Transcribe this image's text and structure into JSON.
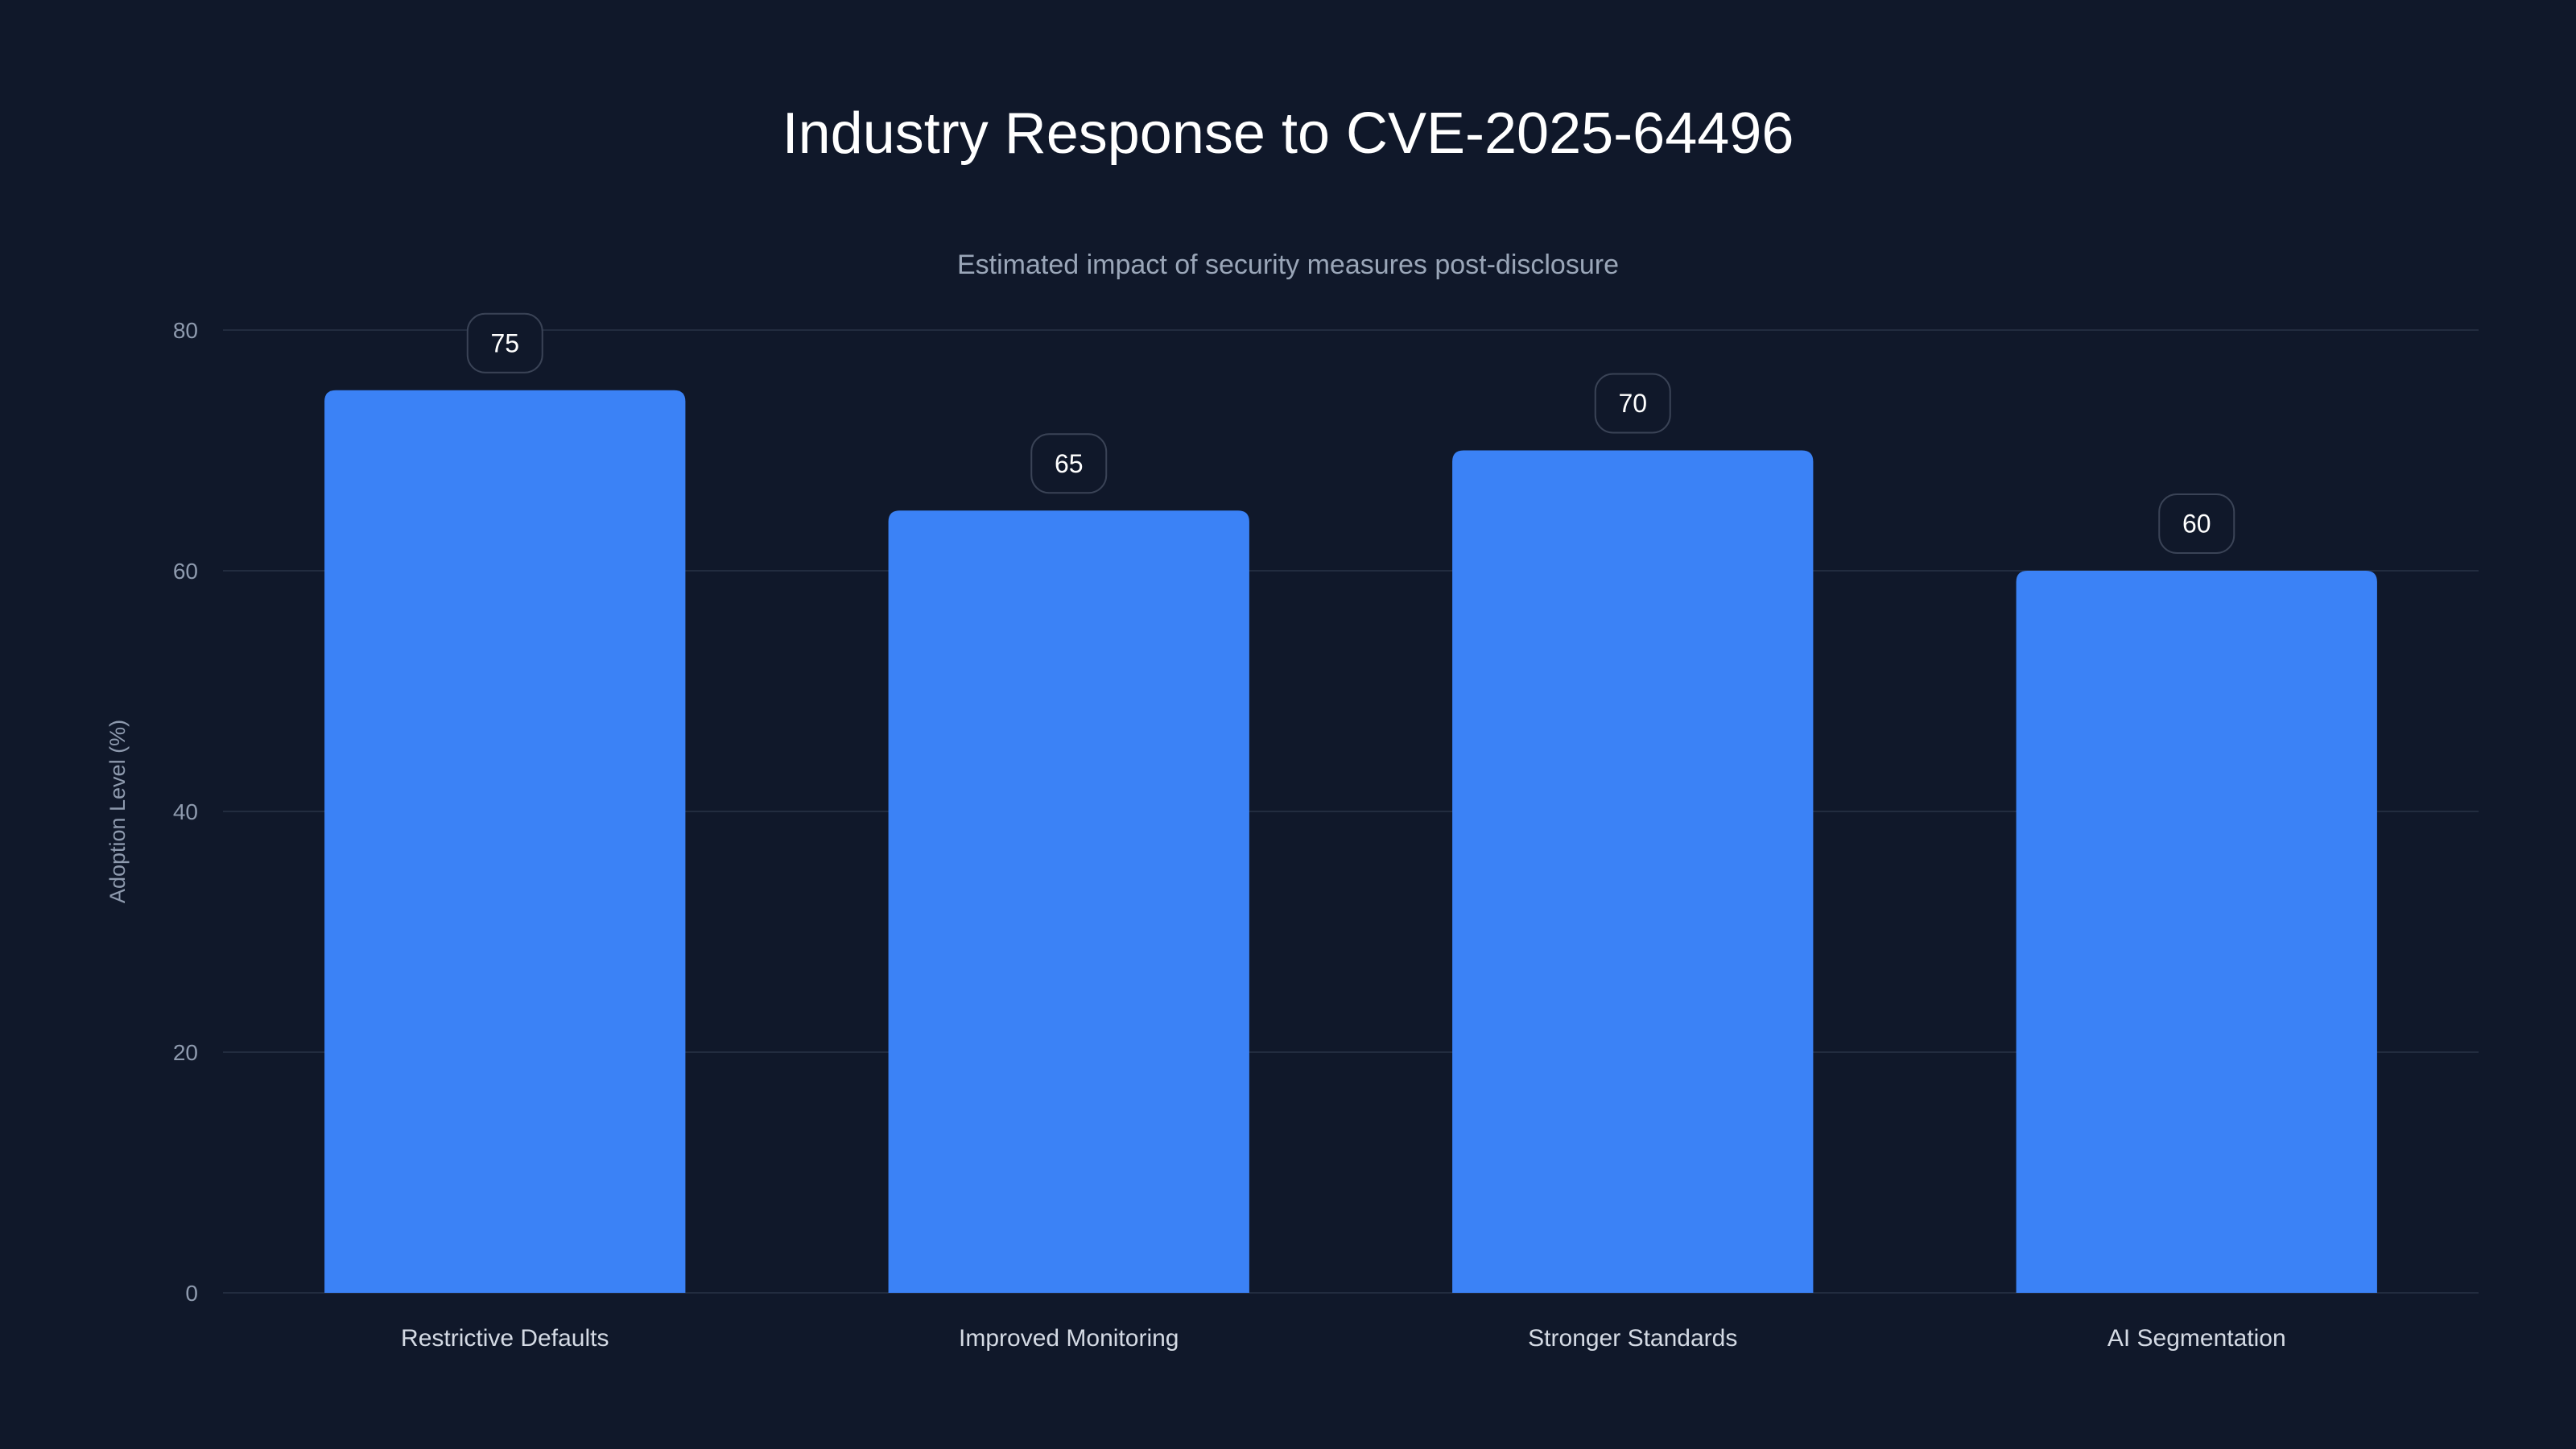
{
  "chart_data": {
    "type": "bar",
    "title": "Industry Response to CVE-2025-64496",
    "subtitle": "Estimated impact of security measures post-disclosure",
    "xlabel": "",
    "ylabel": "Adoption Level (%)",
    "categories": [
      "Restrictive Defaults",
      "Improved Monitoring",
      "Stronger Standards",
      "AI Segmentation"
    ],
    "values": [
      75,
      65,
      70,
      60
    ],
    "ylim": [
      0,
      80
    ],
    "yticks": [
      0,
      20,
      40,
      60,
      80
    ],
    "grid": true,
    "data_labels": true,
    "colors": {
      "background": "#10182a",
      "bar": "#3b82f6"
    }
  }
}
